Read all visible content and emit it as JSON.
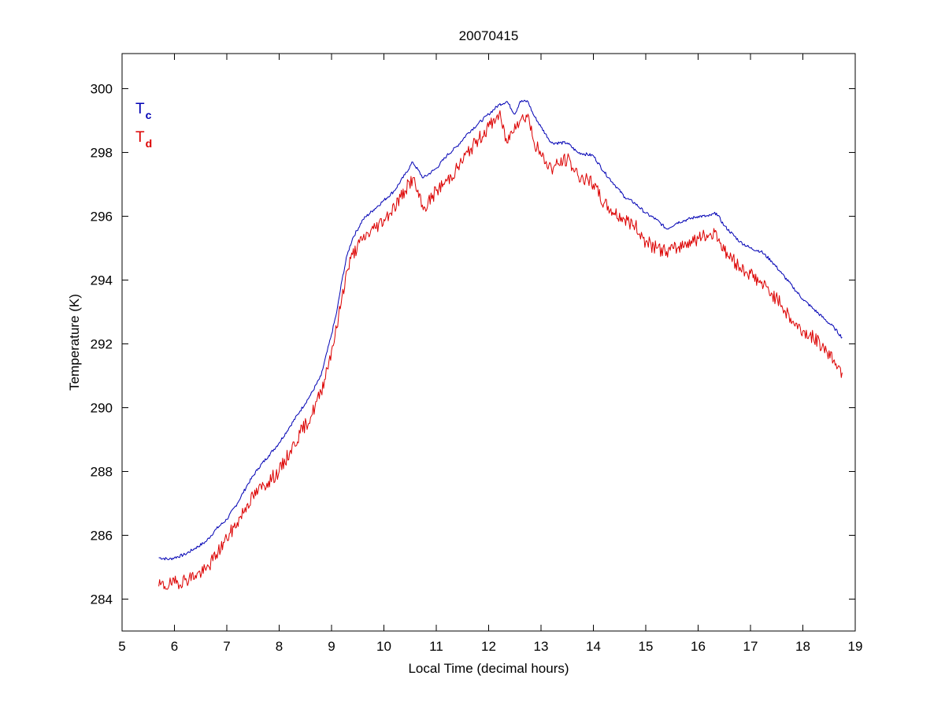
{
  "chart_data": {
    "type": "line",
    "title": "20070415",
    "xlabel": "Local Time (decimal hours)",
    "ylabel": "Temperature (K)",
    "xlim": [
      5,
      19
    ],
    "ylim": [
      283,
      301.1
    ],
    "xticks": [
      5,
      6,
      7,
      8,
      9,
      10,
      11,
      12,
      13,
      14,
      15,
      16,
      17,
      18,
      19
    ],
    "yticks": [
      284,
      286,
      288,
      290,
      292,
      294,
      296,
      298,
      300
    ],
    "grid": false,
    "legend_position": "top-left",
    "series": [
      {
        "name": "T",
        "subscript": "c",
        "color": "#0000b4",
        "x": [
          5.7,
          5.9,
          6.0,
          6.2,
          6.4,
          6.6,
          6.8,
          7.0,
          7.2,
          7.4,
          7.6,
          7.8,
          8.0,
          8.2,
          8.4,
          8.6,
          8.8,
          9.0,
          9.1,
          9.2,
          9.3,
          9.4,
          9.6,
          9.8,
          10.0,
          10.2,
          10.4,
          10.55,
          10.75,
          11.0,
          11.2,
          11.4,
          11.6,
          11.8,
          12.0,
          12.2,
          12.35,
          12.5,
          12.6,
          12.75,
          12.85,
          13.0,
          13.2,
          13.5,
          13.7,
          14.0,
          14.2,
          14.4,
          14.6,
          14.8,
          15.0,
          15.2,
          15.4,
          15.6,
          15.8,
          16.0,
          16.2,
          16.35,
          16.5,
          16.8,
          17.0,
          17.2,
          17.4,
          17.6,
          17.8,
          18.0,
          18.2,
          18.4,
          18.6,
          18.75
        ],
        "values": [
          285.3,
          285.25,
          285.3,
          285.4,
          285.6,
          285.8,
          286.2,
          286.5,
          287.0,
          287.6,
          288.1,
          288.5,
          288.9,
          289.4,
          289.9,
          290.4,
          291.0,
          292.3,
          293.0,
          294.0,
          294.8,
          295.3,
          295.9,
          296.2,
          296.5,
          296.8,
          297.3,
          297.7,
          297.2,
          297.5,
          297.9,
          298.2,
          298.6,
          298.9,
          299.2,
          299.5,
          299.6,
          299.2,
          299.6,
          299.6,
          299.2,
          298.8,
          298.3,
          298.3,
          298.0,
          297.9,
          297.4,
          297.0,
          296.6,
          296.4,
          296.1,
          295.9,
          295.6,
          295.8,
          295.9,
          296.0,
          296.0,
          296.1,
          295.7,
          295.2,
          295.0,
          294.9,
          294.6,
          294.2,
          293.8,
          293.4,
          293.1,
          292.8,
          292.5,
          292.2
        ]
      },
      {
        "name": "T",
        "subscript": "d",
        "color": "#dc0000",
        "x": [
          5.7,
          5.9,
          6.0,
          6.2,
          6.4,
          6.6,
          6.8,
          7.0,
          7.2,
          7.4,
          7.6,
          7.8,
          8.0,
          8.2,
          8.4,
          8.6,
          8.8,
          9.0,
          9.1,
          9.2,
          9.3,
          9.4,
          9.6,
          9.8,
          10.0,
          10.2,
          10.4,
          10.55,
          10.75,
          11.0,
          11.2,
          11.4,
          11.6,
          11.8,
          12.0,
          12.2,
          12.35,
          12.5,
          12.6,
          12.75,
          12.85,
          13.0,
          13.2,
          13.5,
          13.7,
          14.0,
          14.2,
          14.4,
          14.6,
          14.8,
          15.0,
          15.2,
          15.4,
          15.6,
          15.8,
          16.0,
          16.2,
          16.35,
          16.5,
          16.8,
          17.0,
          17.2,
          17.4,
          17.6,
          17.8,
          18.0,
          18.2,
          18.4,
          18.6,
          18.75
        ],
        "values": [
          284.4,
          284.45,
          284.5,
          284.6,
          284.75,
          284.9,
          285.4,
          285.9,
          286.4,
          287.0,
          287.4,
          287.7,
          288.0,
          288.6,
          289.2,
          289.7,
          290.5,
          291.8,
          292.5,
          293.5,
          294.3,
          294.8,
          295.3,
          295.6,
          295.9,
          296.3,
          296.8,
          297.2,
          296.2,
          296.8,
          297.1,
          297.5,
          298.0,
          298.4,
          298.8,
          299.2,
          298.3,
          298.9,
          299.0,
          299.2,
          298.4,
          297.9,
          297.5,
          297.8,
          297.3,
          297.0,
          296.4,
          296.1,
          295.9,
          295.7,
          295.2,
          295.0,
          294.9,
          295.0,
          295.2,
          295.3,
          295.4,
          295.5,
          294.9,
          294.4,
          294.2,
          293.9,
          293.6,
          293.2,
          292.7,
          292.4,
          292.2,
          291.9,
          291.5,
          291.1
        ]
      }
    ]
  }
}
